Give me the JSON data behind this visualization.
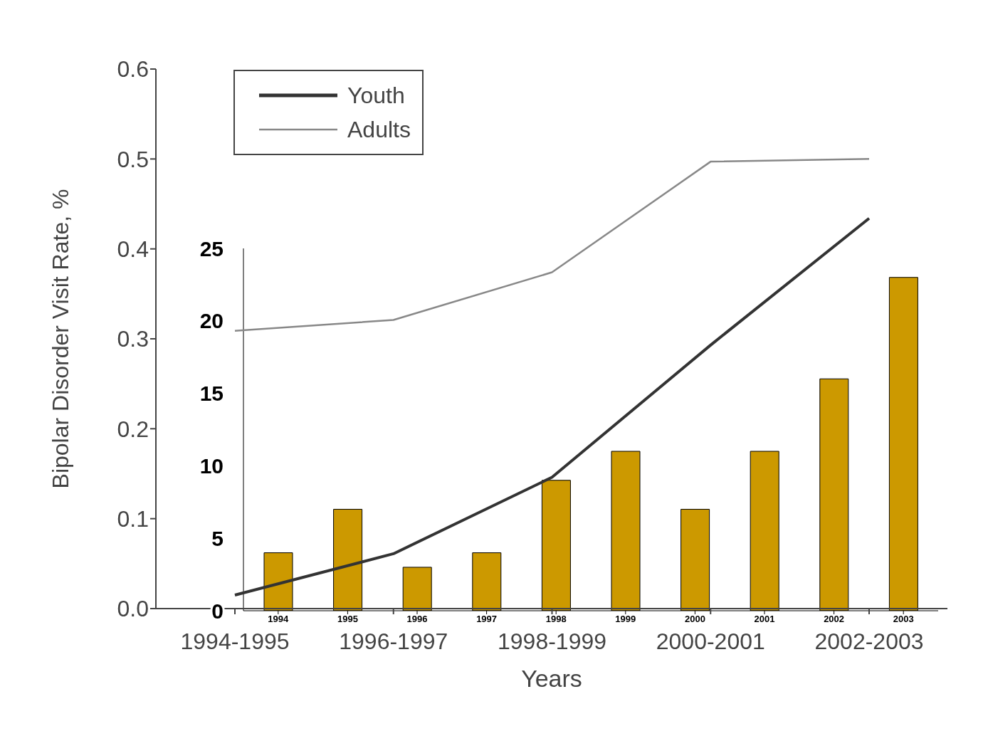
{
  "chart_data": [
    {
      "type": "line",
      "xlabel": "Years",
      "ylabel": "Bipolar Disorder Visit Rate, %",
      "categories": [
        "1994-1995",
        "1996-1997",
        "1998-1999",
        "2000-2001",
        "2002-2003"
      ],
      "series": [
        {
          "name": "Youth",
          "color": "#333333",
          "values": [
            0.015,
            0.061,
            0.146,
            0.293,
            0.434
          ]
        },
        {
          "name": "Adults",
          "color": "#888888",
          "values": [
            0.309,
            0.321,
            0.374,
            0.497,
            0.5
          ]
        }
      ],
      "ylim": [
        0,
        0.6
      ],
      "yticks": [
        {
          "value": 0,
          "label": "0.0"
        },
        0.1,
        0.2,
        0.3,
        0.4,
        0.5,
        0.6
      ],
      "legend": "top left",
      "marker": "none",
      "line_style": "solid",
      "grid": false
    },
    {
      "type": "bar",
      "categories": [
        "1994",
        "1995",
        "1996",
        "1997",
        "1998",
        "1999",
        "2000",
        "2001",
        "2002",
        "2003"
      ],
      "values": [
        4,
        7,
        3,
        4,
        9,
        11,
        7,
        11,
        16,
        23
      ],
      "color": "#cc9900",
      "ylim": [
        0,
        25
      ],
      "yticks": [
        0,
        5,
        10,
        15,
        20,
        25
      ],
      "grid": false
    }
  ]
}
